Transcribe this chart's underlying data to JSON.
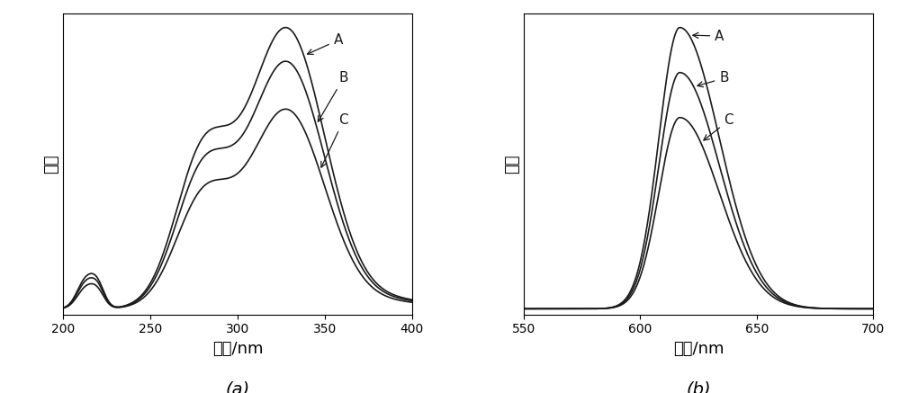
{
  "fig_width": 10.0,
  "fig_height": 4.37,
  "dpi": 100,
  "background_color": "#ffffff",
  "subplot_a": {
    "xlim": [
      200,
      400
    ],
    "xticks": [
      200,
      250,
      300,
      350,
      400
    ],
    "xlabel": "波长/nm",
    "ylabel": "强度"
  },
  "subplot_b": {
    "xlim": [
      550,
      700
    ],
    "xticks": [
      550,
      600,
      650,
      700
    ],
    "xlabel": "波长/nm",
    "ylabel": "强度"
  },
  "caption_a": "(a)",
  "caption_b": "(b)",
  "line_color": "#1a1a1a",
  "line_width": 1.2,
  "font_size_label": 13,
  "font_size_tick": 10,
  "font_size_caption": 14,
  "font_size_annotation": 11
}
